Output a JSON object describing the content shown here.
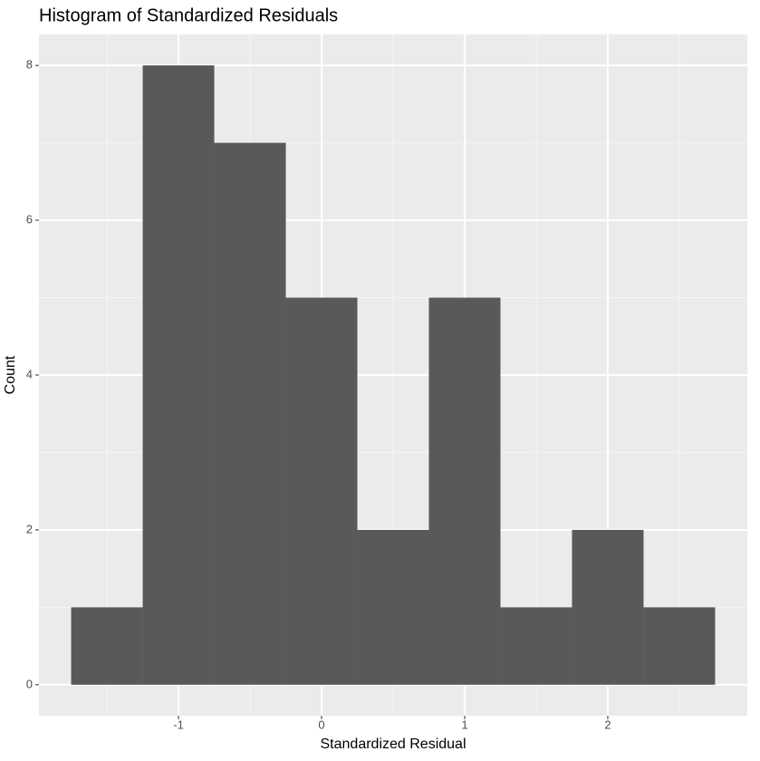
{
  "chart_data": {
    "type": "histogram",
    "title": "Histogram of Standardized Residuals",
    "x_label": "Standardized Residual",
    "y_label": "Count",
    "bins": [
      -1.75,
      -1.25,
      -0.75,
      -0.25,
      0.25,
      0.75,
      1.25,
      1.75,
      2.25,
      2.75
    ],
    "counts": [
      1,
      8,
      7,
      5,
      2,
      5,
      1,
      2,
      1
    ],
    "color": "#595959",
    "xlim": [
      -1.975,
      2.975
    ],
    "ylim": [
      -0.4,
      8.4
    ],
    "xticks": [
      -1,
      0,
      1,
      2
    ],
    "yticks": [
      0,
      2,
      4,
      6,
      8
    ],
    "grid": true
  }
}
